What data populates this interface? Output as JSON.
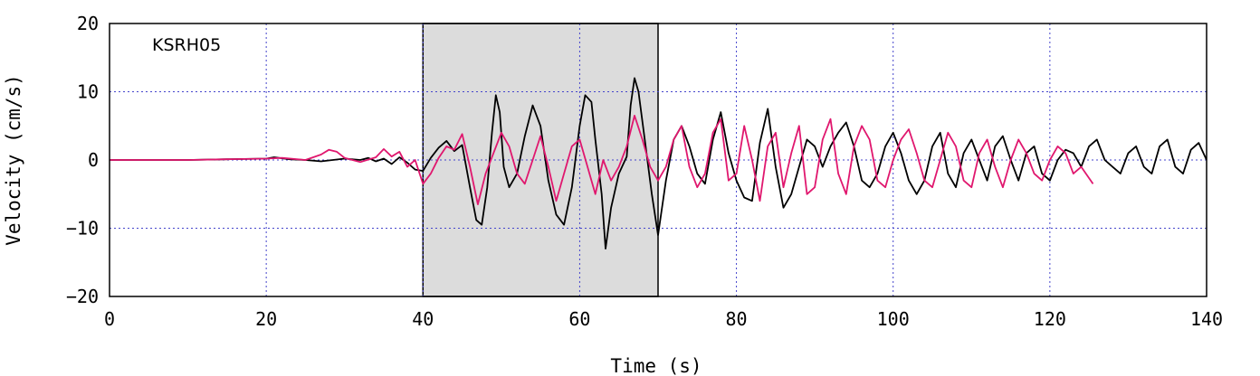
{
  "chart_data": {
    "type": "line",
    "station": "KSRH05",
    "xlabel": "Time (s)",
    "ylabel": "Velocity (cm/s)",
    "xlim": [
      0,
      140
    ],
    "ylim": [
      -20,
      20
    ],
    "xticks": [
      0,
      20,
      40,
      60,
      80,
      100,
      120,
      140
    ],
    "yticks": [
      20,
      10,
      0,
      -10,
      -20
    ],
    "grid": true,
    "highlight_window": [
      40,
      70
    ],
    "colors": {
      "observed": "#000000",
      "synthetic": "#e0176e",
      "grid": "#4444cc",
      "window": "#dcdcdc"
    },
    "series": [
      {
        "color": "#000000",
        "x": [
          0,
          5,
          10,
          15,
          20,
          21,
          23,
          25,
          27,
          30,
          32,
          33,
          34,
          35,
          36,
          37,
          38,
          39,
          40,
          41,
          42,
          43,
          44,
          45,
          46,
          46.8,
          47.5,
          48.2,
          48.8,
          49.3,
          49.8,
          50.3,
          51,
          52,
          53,
          54,
          55,
          56,
          57,
          58,
          59,
          60,
          60.7,
          61.5,
          62,
          62.8,
          63.3,
          64,
          65,
          66,
          66.5,
          67,
          67.5,
          68.3,
          69.2,
          70,
          71,
          72,
          73,
          74,
          75,
          76,
          77,
          78,
          79,
          80,
          81,
          82,
          83,
          84,
          85,
          86,
          87,
          88,
          89,
          90,
          91,
          92,
          93,
          94,
          95,
          96,
          97,
          98,
          99,
          100,
          101,
          102,
          103,
          104,
          105,
          106,
          107,
          108,
          109,
          110,
          111,
          112,
          113,
          114,
          115,
          116,
          117,
          118,
          119,
          120,
          121,
          122,
          123,
          124,
          125,
          126,
          127,
          128,
          129,
          130,
          131,
          132,
          133,
          134,
          135,
          136,
          137,
          138,
          139,
          140
        ],
        "y": [
          0,
          0,
          0,
          0.1,
          0.2,
          0.4,
          0.1,
          0,
          -0.2,
          0.2,
          0,
          0.3,
          -0.2,
          0.2,
          -0.6,
          0.4,
          -0.4,
          -1.4,
          -1.6,
          0.3,
          1.8,
          2.8,
          1.3,
          2.2,
          -4,
          -8.8,
          -9.5,
          -4,
          4,
          9.5,
          7,
          -1,
          -4,
          -2,
          3.5,
          8,
          5,
          -3,
          -8,
          -9.5,
          -4,
          5,
          9.5,
          8.5,
          3,
          -5,
          -13,
          -7,
          -2,
          0.5,
          8,
          12,
          10,
          3,
          -5,
          -11,
          -3,
          3,
          5,
          2,
          -2,
          -3.5,
          3,
          7,
          1,
          -3,
          -5.5,
          -6,
          2.5,
          7.5,
          -1,
          -7,
          -5,
          -1,
          3,
          2,
          -1,
          2,
          4,
          5.5,
          2,
          -3,
          -4,
          -2,
          2,
          4,
          1,
          -3,
          -5,
          -3,
          2,
          4,
          -2,
          -4,
          1,
          3,
          0,
          -3,
          2,
          3.5,
          0,
          -3,
          1,
          2,
          -2,
          -3,
          0,
          1.5,
          1,
          -1,
          2,
          3,
          0,
          -1,
          -2,
          1,
          2,
          -1,
          -2,
          2,
          3,
          -1,
          -2,
          1.5,
          2.5,
          0
        ]
      },
      {
        "color": "#e0176e",
        "x": [
          0,
          5,
          10,
          15,
          20,
          22,
          25,
          27,
          28,
          29,
          30,
          32,
          34,
          35,
          36,
          37,
          38,
          39,
          40,
          41,
          42,
          43,
          44,
          45,
          46,
          47,
          48,
          49,
          50,
          51,
          52,
          53,
          54,
          55,
          56,
          57,
          58,
          59,
          60,
          61,
          62,
          63,
          64,
          65,
          66,
          67,
          68,
          69,
          70,
          71,
          72,
          73,
          74,
          75,
          76,
          77,
          78,
          79,
          80,
          81,
          82,
          83,
          84,
          85,
          86,
          87,
          88,
          89,
          90,
          91,
          92,
          93,
          94,
          95,
          96,
          97,
          98,
          99,
          100,
          101,
          102,
          103,
          104,
          105,
          106,
          107,
          108,
          109,
          110,
          111,
          112,
          113,
          114,
          115,
          116,
          117,
          118,
          119,
          120,
          121,
          122,
          123,
          124,
          125.5
        ],
        "y": [
          0,
          0,
          0,
          0.1,
          0.2,
          0.3,
          0,
          0.8,
          1.5,
          1.2,
          0.3,
          -0.3,
          0.4,
          1.6,
          0.5,
          1.2,
          -1,
          0,
          -3.5,
          -2,
          0.3,
          2,
          1.5,
          3.8,
          -1,
          -6.5,
          -2,
          1,
          4,
          2,
          -2,
          -3.5,
          0,
          3.5,
          -1,
          -6,
          -2,
          2,
          3,
          -1,
          -5,
          0,
          -3,
          -1,
          2,
          6.5,
          3,
          -1,
          -3,
          -1,
          3,
          5,
          -1,
          -4,
          -2,
          4,
          6,
          -3,
          -2,
          5,
          0,
          -6,
          2,
          4,
          -4,
          1,
          5,
          -5,
          -4,
          3,
          6,
          -2,
          -5,
          2,
          5,
          3,
          -3,
          -4,
          0,
          3,
          4.5,
          1,
          -3,
          -4,
          0,
          4,
          2,
          -3,
          -4,
          1,
          3,
          -1,
          -4,
          0,
          3,
          1,
          -2,
          -3,
          0,
          2,
          1,
          -2,
          -1,
          -3.5
        ]
      }
    ]
  }
}
